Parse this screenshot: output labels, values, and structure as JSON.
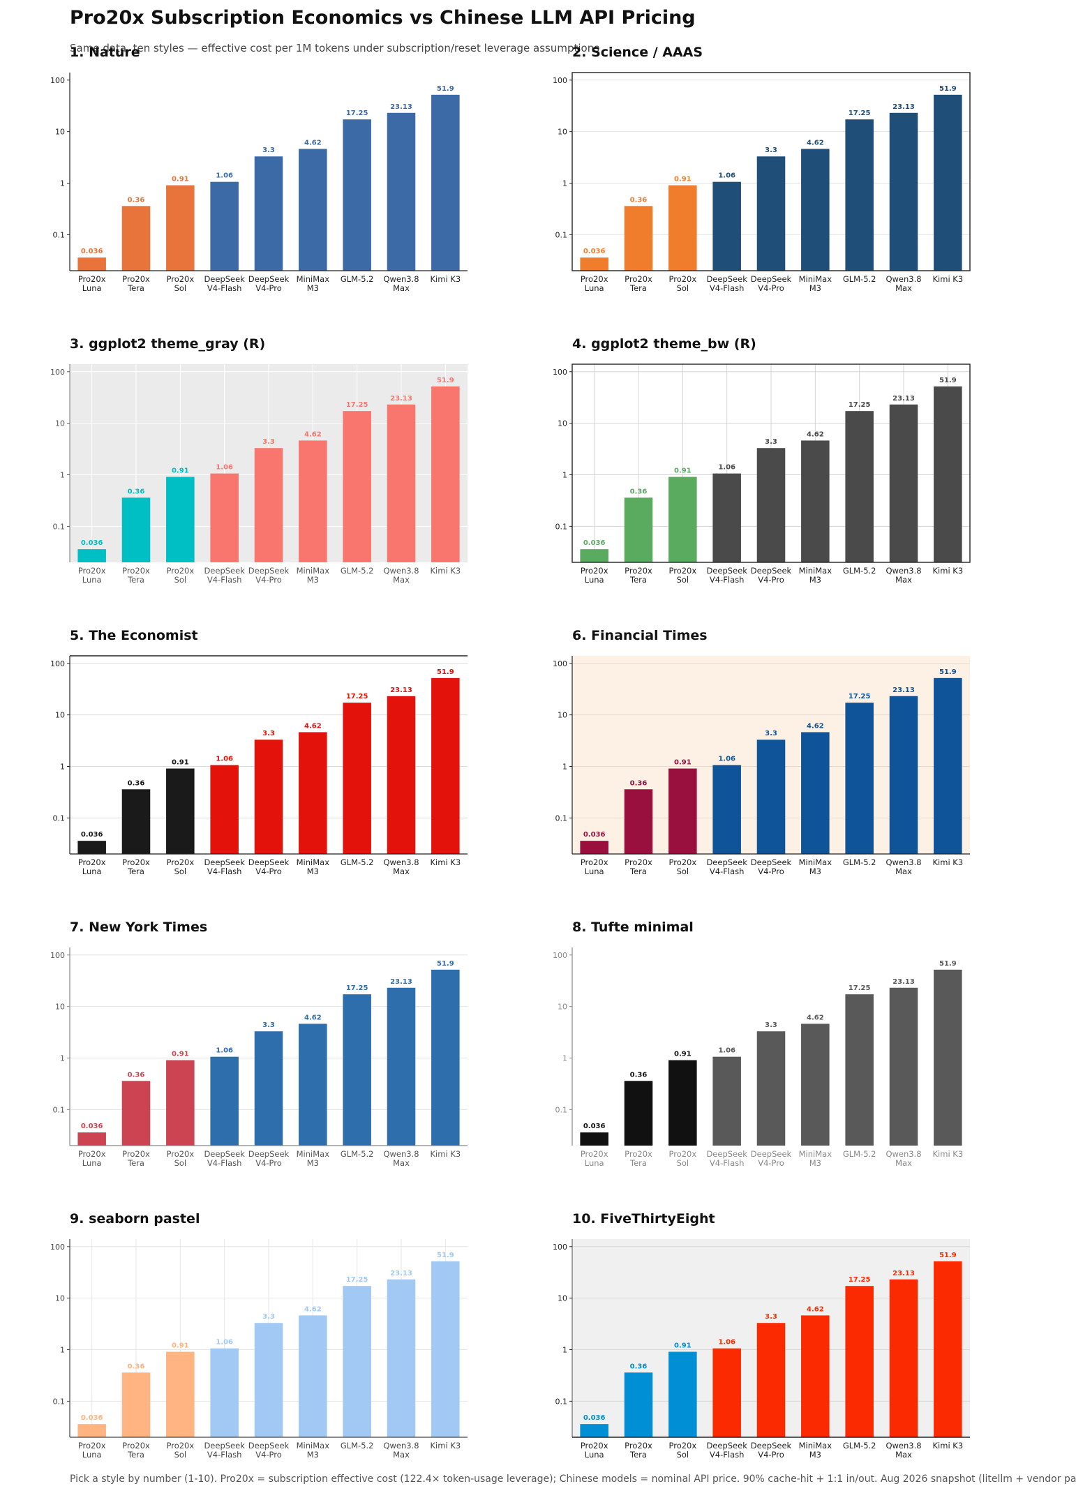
{
  "header": {
    "title": "Pro20x Subscription Economics vs Chinese LLM API Pricing",
    "subtitle": "Same data, ten styles — effective cost per 1M tokens under subscription/reset leverage assumptions"
  },
  "footer": {
    "note": "Pick a style by number (1-10).  Pro20x = subscription effective cost (122.4× token-usage leverage);  Chinese models = nominal API price.  90% cache-hit + 1:1 in/out.  Aug 2026 snapshot (litellm + vendor pa"
  },
  "chart_data": [
    {
      "number": "1.",
      "title": "Nature",
      "type": "bar",
      "scale": "log",
      "ylim": [
        0.02,
        140
      ],
      "yticks": [
        "0.1",
        "1",
        "10",
        "100"
      ],
      "tick_values": [
        0.1,
        1,
        10,
        100
      ],
      "categories": [
        "Pro20x\nLuna",
        "Pro20x\nTera",
        "Pro20x\nSol",
        "DeepSeek\nV4-Flash",
        "DeepSeek\nV4-Pro",
        "MiniMax\nM3",
        "GLM-5.2",
        "Qwen3.8\nMax",
        "Kimi K3"
      ],
      "values": [
        0.036,
        0.36,
        0.91,
        1.06,
        3.3,
        4.62,
        17.25,
        23.13,
        51.9
      ],
      "value_labels": [
        "0.036",
        "0.36",
        "0.91",
        "1.06",
        "3.3",
        "4.62",
        "17.25",
        "23.13",
        "51.9"
      ],
      "style": {
        "bg": "#ffffff",
        "frame": "left-bottom",
        "grid": "none",
        "sub_color": "#e8743b",
        "api_color": "#3b6aa7",
        "label_color": "match",
        "tick_color": "#222222",
        "axis_color": "#222222"
      }
    },
    {
      "number": "2.",
      "title": "Science / AAAS",
      "type": "bar",
      "scale": "log",
      "ylim": [
        0.02,
        140
      ],
      "yticks": [
        "0.1",
        "1",
        "10",
        "100"
      ],
      "tick_values": [
        0.1,
        1,
        10,
        100
      ],
      "categories": [
        "Pro20x\nLuna",
        "Pro20x\nTera",
        "Pro20x\nSol",
        "DeepSeek\nV4-Flash",
        "DeepSeek\nV4-Pro",
        "MiniMax\nM3",
        "GLM-5.2",
        "Qwen3.8\nMax",
        "Kimi K3"
      ],
      "values": [
        0.036,
        0.36,
        0.91,
        1.06,
        3.3,
        4.62,
        17.25,
        23.13,
        51.9
      ],
      "value_labels": [
        "0.036",
        "0.36",
        "0.91",
        "1.06",
        "3.3",
        "4.62",
        "17.25",
        "23.13",
        "51.9"
      ],
      "style": {
        "bg": "#ffffff",
        "frame": "box",
        "grid": "y",
        "grid_color": "#e2e2e2",
        "sub_color": "#f07d2c",
        "api_color": "#1f4e79",
        "label_color": "match",
        "tick_color": "#222222",
        "axis_color": "#222222"
      }
    },
    {
      "number": "3.",
      "title": "ggplot2 theme_gray (R)",
      "type": "bar",
      "scale": "log",
      "ylim": [
        0.02,
        140
      ],
      "yticks": [
        "0.1",
        "1",
        "10",
        "100"
      ],
      "tick_values": [
        0.1,
        1,
        10,
        100
      ],
      "categories": [
        "Pro20x\nLuna",
        "Pro20x\nTera",
        "Pro20x\nSol",
        "DeepSeek\nV4-Flash",
        "DeepSeek\nV4-Pro",
        "MiniMax\nM3",
        "GLM-5.2",
        "Qwen3.8\nMax",
        "Kimi K3"
      ],
      "values": [
        0.036,
        0.36,
        0.91,
        1.06,
        3.3,
        4.62,
        17.25,
        23.13,
        51.9
      ],
      "value_labels": [
        "0.036",
        "0.36",
        "0.91",
        "1.06",
        "3.3",
        "4.62",
        "17.25",
        "23.13",
        "51.9"
      ],
      "style": {
        "bg": "#ebebeb",
        "frame": "none",
        "grid": "xy",
        "grid_color": "#ffffff",
        "sub_color": "#00bfc4",
        "api_color": "#f8766d",
        "label_color": "match",
        "tick_color": "#555555",
        "axis_color": "#555555"
      }
    },
    {
      "number": "4.",
      "title": "ggplot2 theme_bw (R)",
      "type": "bar",
      "scale": "log",
      "ylim": [
        0.02,
        140
      ],
      "yticks": [
        "0.1",
        "1",
        "10",
        "100"
      ],
      "tick_values": [
        0.1,
        1,
        10,
        100
      ],
      "categories": [
        "Pro20x\nLuna",
        "Pro20x\nTera",
        "Pro20x\nSol",
        "DeepSeek\nV4-Flash",
        "DeepSeek\nV4-Pro",
        "MiniMax\nM3",
        "GLM-5.2",
        "Qwen3.8\nMax",
        "Kimi K3"
      ],
      "values": [
        0.036,
        0.36,
        0.91,
        1.06,
        3.3,
        4.62,
        17.25,
        23.13,
        51.9
      ],
      "value_labels": [
        "0.036",
        "0.36",
        "0.91",
        "1.06",
        "3.3",
        "4.62",
        "17.25",
        "23.13",
        "51.9"
      ],
      "style": {
        "bg": "#ffffff",
        "frame": "box",
        "grid": "xy",
        "grid_color": "#d4d4d4",
        "sub_color": "#5aaa5f",
        "api_color": "#4a4a4a",
        "label_color": "match",
        "tick_color": "#222222",
        "axis_color": "#222222"
      }
    },
    {
      "number": "5.",
      "title": "The Economist",
      "type": "bar",
      "scale": "log",
      "ylim": [
        0.02,
        140
      ],
      "yticks": [
        "0.1",
        "1",
        "10",
        "100"
      ],
      "tick_values": [
        0.1,
        1,
        10,
        100
      ],
      "categories": [
        "Pro20x\nLuna",
        "Pro20x\nTera",
        "Pro20x\nSol",
        "DeepSeek\nV4-Flash",
        "DeepSeek\nV4-Pro",
        "MiniMax\nM3",
        "GLM-5.2",
        "Qwen3.8\nMax",
        "Kimi K3"
      ],
      "values": [
        0.036,
        0.36,
        0.91,
        1.06,
        3.3,
        4.62,
        17.25,
        23.13,
        51.9
      ],
      "value_labels": [
        "0.036",
        "0.36",
        "0.91",
        "1.06",
        "3.3",
        "4.62",
        "17.25",
        "23.13",
        "51.9"
      ],
      "style": {
        "bg": "#ffffff",
        "frame": "economist",
        "grid": "y",
        "grid_color": "#dcdcdc",
        "sub_color": "#1a1a1a",
        "api_color": "#e3120b",
        "label_color": "match",
        "tick_color": "#222222",
        "axis_color": "#222222"
      }
    },
    {
      "number": "6.",
      "title": "Financial Times",
      "type": "bar",
      "scale": "log",
      "ylim": [
        0.02,
        140
      ],
      "yticks": [
        "0.1",
        "1",
        "10",
        "100"
      ],
      "tick_values": [
        0.1,
        1,
        10,
        100
      ],
      "categories": [
        "Pro20x\nLuna",
        "Pro20x\nTera",
        "Pro20x\nSol",
        "DeepSeek\nV4-Flash",
        "DeepSeek\nV4-Pro",
        "MiniMax\nM3",
        "GLM-5.2",
        "Qwen3.8\nMax",
        "Kimi K3"
      ],
      "values": [
        0.036,
        0.36,
        0.91,
        1.06,
        3.3,
        4.62,
        17.25,
        23.13,
        51.9
      ],
      "value_labels": [
        "0.036",
        "0.36",
        "0.91",
        "1.06",
        "3.3",
        "4.62",
        "17.25",
        "23.13",
        "51.9"
      ],
      "style": {
        "bg": "#fdf1e6",
        "frame": "left-bottom",
        "grid": "y",
        "grid_color": "#e6d9cc",
        "sub_color": "#990f3d",
        "api_color": "#0f5499",
        "label_color": "match",
        "tick_color": "#222222",
        "axis_color": "#222222"
      }
    },
    {
      "number": "7.",
      "title": "New York Times",
      "type": "bar",
      "scale": "log",
      "ylim": [
        0.02,
        140
      ],
      "yticks": [
        "0.1",
        "1",
        "10",
        "100"
      ],
      "tick_values": [
        0.1,
        1,
        10,
        100
      ],
      "categories": [
        "Pro20x\nLuna",
        "Pro20x\nTera",
        "Pro20x\nSol",
        "DeepSeek\nV4-Flash",
        "DeepSeek\nV4-Pro",
        "MiniMax\nM3",
        "GLM-5.2",
        "Qwen3.8\nMax",
        "Kimi K3"
      ],
      "values": [
        0.036,
        0.36,
        0.91,
        1.06,
        3.3,
        4.62,
        17.25,
        23.13,
        51.9
      ],
      "value_labels": [
        "0.036",
        "0.36",
        "0.91",
        "1.06",
        "3.3",
        "4.62",
        "17.25",
        "23.13",
        "51.9"
      ],
      "style": {
        "bg": "#ffffff",
        "frame": "left-bottom-gray",
        "grid": "y",
        "grid_color": "#e4e4e4",
        "sub_color": "#cc4452",
        "api_color": "#2f6eac",
        "label_color": "match",
        "tick_color": "#555555",
        "axis_color": "#888888"
      }
    },
    {
      "number": "8.",
      "title": "Tufte minimal",
      "type": "bar",
      "scale": "log",
      "ylim": [
        0.02,
        140
      ],
      "yticks": [
        "0.1",
        "1",
        "10",
        "100"
      ],
      "tick_values": [
        0.1,
        1,
        10,
        100
      ],
      "categories": [
        "Pro20x\nLuna",
        "Pro20x\nTera",
        "Pro20x\nSol",
        "DeepSeek\nV4-Flash",
        "DeepSeek\nV4-Pro",
        "MiniMax\nM3",
        "GLM-5.2",
        "Qwen3.8\nMax",
        "Kimi K3"
      ],
      "values": [
        0.036,
        0.36,
        0.91,
        1.06,
        3.3,
        4.62,
        17.25,
        23.13,
        51.9
      ],
      "value_labels": [
        "0.036",
        "0.36",
        "0.91",
        "1.06",
        "3.3",
        "4.62",
        "17.25",
        "23.13",
        "51.9"
      ],
      "style": {
        "bg": "#ffffff",
        "frame": "left-only",
        "grid": "none",
        "sub_color": "#111111",
        "api_color": "#595959",
        "label_color": "match",
        "tick_color": "#888888",
        "axis_color": "#888888"
      }
    },
    {
      "number": "9.",
      "title": "seaborn pastel",
      "type": "bar",
      "scale": "log",
      "ylim": [
        0.02,
        140
      ],
      "yticks": [
        "0.1",
        "1",
        "10",
        "100"
      ],
      "tick_values": [
        0.1,
        1,
        10,
        100
      ],
      "categories": [
        "Pro20x\nLuna",
        "Pro20x\nTera",
        "Pro20x\nSol",
        "DeepSeek\nV4-Flash",
        "DeepSeek\nV4-Pro",
        "MiniMax\nM3",
        "GLM-5.2",
        "Qwen3.8\nMax",
        "Kimi K3"
      ],
      "values": [
        0.036,
        0.36,
        0.91,
        1.06,
        3.3,
        4.62,
        17.25,
        23.13,
        51.9
      ],
      "value_labels": [
        "0.036",
        "0.36",
        "0.91",
        "1.06",
        "3.3",
        "4.62",
        "17.25",
        "23.13",
        "51.9"
      ],
      "style": {
        "bg": "#ffffff",
        "frame": "left-bottom",
        "grid": "xy",
        "grid_color": "#e6e6e6",
        "sub_color": "#ffb482",
        "api_color": "#a1c9f4",
        "label_color": "match",
        "tick_color": "#444444",
        "axis_color": "#444444"
      }
    },
    {
      "number": "10.",
      "title": "FiveThirtyEight",
      "type": "bar",
      "scale": "log",
      "ylim": [
        0.02,
        140
      ],
      "yticks": [
        "0.1",
        "1",
        "10",
        "100"
      ],
      "tick_values": [
        0.1,
        1,
        10,
        100
      ],
      "categories": [
        "Pro20x\nLuna",
        "Pro20x\nTera",
        "Pro20x\nSol",
        "DeepSeek\nV4-Flash",
        "DeepSeek\nV4-Pro",
        "MiniMax\nM3",
        "GLM-5.2",
        "Qwen3.8\nMax",
        "Kimi K3"
      ],
      "values": [
        0.036,
        0.36,
        0.91,
        1.06,
        3.3,
        4.62,
        17.25,
        23.13,
        51.9
      ],
      "value_labels": [
        "0.036",
        "0.36",
        "0.91",
        "1.06",
        "3.3",
        "4.62",
        "17.25",
        "23.13",
        "51.9"
      ],
      "style": {
        "bg": "#f0f0f0",
        "frame": "none-bottom",
        "grid": "y",
        "grid_color": "#d7d7d7",
        "sub_color": "#008fd5",
        "api_color": "#fc2a00",
        "label_color": "match",
        "tick_color": "#222222",
        "axis_color": "#222222"
      }
    }
  ]
}
